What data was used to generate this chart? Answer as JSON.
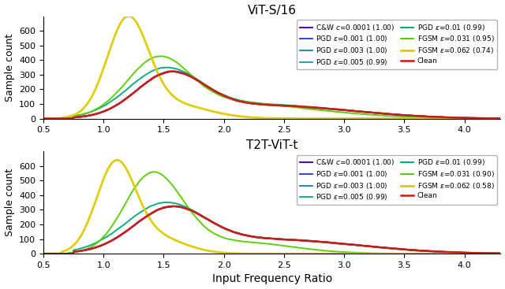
{
  "title1": "ViT-S/16",
  "title2": "T2T-ViT-t",
  "xlabel": "Input Frequency Ratio",
  "ylabel": "Sample count",
  "xlim": [
    0.5,
    4.3
  ],
  "ylim": [
    0,
    700
  ],
  "yticks": [
    0,
    100,
    200,
    300,
    400,
    500,
    600
  ],
  "xticks": [
    0.5,
    1.0,
    1.5,
    2.0,
    2.5,
    3.0,
    3.5,
    4.0
  ],
  "legend1": [
    {
      "label": "C&W $c$=0.0001 (1.00)",
      "color": "#5500aa",
      "lw": 1.4
    },
    {
      "label": "PGD $\\varepsilon$=0.001 (1.00)",
      "color": "#3344cc",
      "lw": 1.4
    },
    {
      "label": "PGD $\\varepsilon$=0.003 (1.00)",
      "color": "#2288bb",
      "lw": 1.4
    },
    {
      "label": "PGD $\\varepsilon$=0.005 (0.99)",
      "color": "#11aaaa",
      "lw": 1.4
    },
    {
      "label": "PGD $\\varepsilon$=0.01 (0.99)",
      "color": "#00aa77",
      "lw": 1.4
    },
    {
      "label": "FGSM $\\varepsilon$=0.031 (0.95)",
      "color": "#55cc00",
      "lw": 1.4
    },
    {
      "label": "FGSM $\\varepsilon$=0.062 (0.74)",
      "color": "#ddcc00",
      "lw": 2.0
    },
    {
      "label": "Clean",
      "color": "#dd1111",
      "lw": 1.8
    }
  ],
  "legend2": [
    {
      "label": "C&W $c$=0.0001 (1.00)",
      "color": "#5500aa",
      "lw": 1.4
    },
    {
      "label": "PGD $\\varepsilon$=0.001 (1.00)",
      "color": "#3344cc",
      "lw": 1.4
    },
    {
      "label": "PGD $\\varepsilon$=0.003 (1.00)",
      "color": "#2288bb",
      "lw": 1.4
    },
    {
      "label": "PGD $\\varepsilon$=0.005 (0.99)",
      "color": "#11aaaa",
      "lw": 1.4
    },
    {
      "label": "PGD $\\varepsilon$=0.01 (0.99)",
      "color": "#00aa77",
      "lw": 1.4
    },
    {
      "label": "FGSM $\\varepsilon$=0.031 (0.90)",
      "color": "#55cc00",
      "lw": 1.4
    },
    {
      "label": "FGSM $\\varepsilon$=0.062 (0.58)",
      "color": "#ddcc00",
      "lw": 2.0
    },
    {
      "label": "Clean",
      "color": "#dd1111",
      "lw": 1.8
    }
  ]
}
